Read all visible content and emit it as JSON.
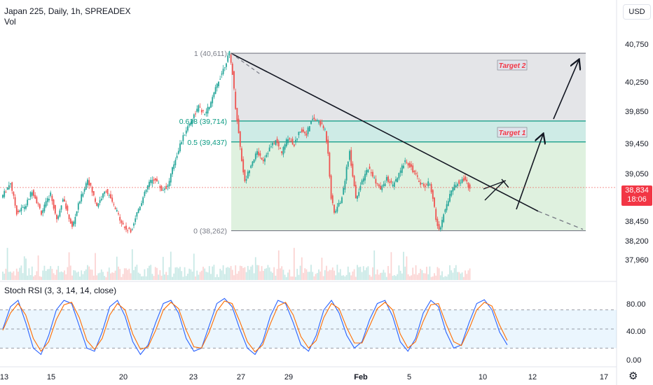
{
  "legend": {
    "symbol_line": "Japan 225, Daily, 1h, SPREADEX",
    "volume_label": "Vol"
  },
  "currency_button": "USD",
  "last_price": {
    "value": "38,834",
    "countdown": "18:06",
    "color": "#f23645"
  },
  "settings_icon": "gear-icon",
  "colors": {
    "up": "#26a69a",
    "down": "#ef5350",
    "rsi_k": "#2962ff",
    "rsi_d": "#ff6d00",
    "fib_line": "#089981",
    "trendline": "#131722"
  },
  "chart_data": [
    {
      "type": "candlestick",
      "title": "Japan 225, Daily, 1h, SPREADEX",
      "x_tick_labels": [
        "13",
        "15",
        "20",
        "23",
        "27",
        "29",
        "Feb",
        "5",
        "10",
        "12",
        "17"
      ],
      "y_tick_labels": [
        "40,750",
        "40,250",
        "39,850",
        "39,450",
        "39,050",
        "38,450",
        "38,200",
        "37,960"
      ],
      "ylim": [
        37800,
        41050
      ],
      "price_path": [
        [
          0,
          38700
        ],
        [
          3,
          38900
        ],
        [
          5,
          38500
        ],
        [
          8,
          38600
        ],
        [
          10,
          38800
        ],
        [
          13,
          38500
        ],
        [
          16,
          38750
        ],
        [
          18,
          38400
        ],
        [
          20,
          38700
        ],
        [
          23,
          38300
        ],
        [
          25,
          38600
        ],
        [
          28,
          38950
        ],
        [
          31,
          38600
        ],
        [
          34,
          38800
        ],
        [
          37,
          38550
        ],
        [
          40,
          38300
        ],
        [
          42,
          38250
        ],
        [
          44,
          38500
        ],
        [
          46,
          38700
        ],
        [
          48,
          38900
        ],
        [
          50,
          38950
        ],
        [
          52,
          38800
        ],
        [
          54,
          38850
        ],
        [
          56,
          39150
        ],
        [
          58,
          39400
        ],
        [
          60,
          39600
        ],
        [
          62,
          39750
        ],
        [
          64,
          39900
        ],
        [
          66,
          39800
        ],
        [
          68,
          39950
        ],
        [
          70,
          40200
        ],
        [
          72,
          40400
        ],
        [
          74,
          40611
        ],
        [
          75,
          40350
        ],
        [
          76,
          39900
        ],
        [
          78,
          39200
        ],
        [
          79,
          38900
        ],
        [
          81,
          39150
        ],
        [
          83,
          39300
        ],
        [
          85,
          39200
        ],
        [
          87,
          39350
        ],
        [
          89,
          39450
        ],
        [
          91,
          39300
        ],
        [
          93,
          39500
        ],
        [
          95,
          39400
        ],
        [
          97,
          39600
        ],
        [
          99,
          39550
        ],
        [
          101,
          39750
        ],
        [
          103,
          39700
        ],
        [
          105,
          39600
        ],
        [
          106,
          39300
        ],
        [
          107,
          38700
        ],
        [
          108,
          38500
        ],
        [
          110,
          38650
        ],
        [
          111,
          38800
        ],
        [
          112,
          39100
        ],
        [
          113,
          39300
        ],
        [
          114,
          39000
        ],
        [
          115,
          38700
        ],
        [
          117,
          38900
        ],
        [
          119,
          39100
        ],
        [
          121,
          38950
        ],
        [
          123,
          38800
        ],
        [
          125,
          38950
        ],
        [
          127,
          38850
        ],
        [
          129,
          39000
        ],
        [
          131,
          39200
        ],
        [
          133,
          39100
        ],
        [
          135,
          38950
        ],
        [
          137,
          38850
        ],
        [
          139,
          38900
        ],
        [
          140,
          38700
        ],
        [
          141,
          38400
        ],
        [
          142,
          38262
        ],
        [
          144,
          38550
        ],
        [
          146,
          38800
        ],
        [
          148,
          38900
        ],
        [
          150,
          38950
        ],
        [
          152,
          38830
        ]
      ],
      "fibonacci": [
        {
          "label": "1 (40,611)",
          "price": 40611
        },
        {
          "label": "0.618 (39,714)",
          "price": 39714
        },
        {
          "label": "0.5 (39,437)",
          "price": 39437
        },
        {
          "label": "0 (38,262)",
          "price": 38262
        }
      ],
      "annotations": [
        "Target 2",
        "Target 1"
      ],
      "last_price": 38834
    },
    {
      "type": "line",
      "title": "Stoch RSI (3, 3, 14, 14, close)",
      "y_tick_labels": [
        "80.00",
        "40.00",
        "0.00"
      ],
      "levels": [
        80,
        50,
        20
      ],
      "ylim": [
        -5,
        105
      ],
      "series": [
        {
          "values": [
            50,
            85,
            95,
            60,
            20,
            10,
            40,
            80,
            95,
            90,
            55,
            20,
            15,
            45,
            85,
            95,
            70,
            30,
            10,
            25,
            60,
            90,
            95,
            75,
            35,
            15,
            20,
            55,
            90,
            98,
            85,
            50,
            20,
            10,
            30,
            70,
            95,
            90,
            60,
            25,
            15,
            40,
            80,
            95,
            75,
            40,
            20,
            30,
            65,
            90,
            95,
            70,
            30,
            15,
            35,
            75,
            95,
            85,
            45,
            20,
            25,
            60,
            90,
            96,
            80,
            45,
            25
          ]
        },
        {
          "values": [
            48,
            75,
            90,
            72,
            35,
            15,
            30,
            65,
            88,
            92,
            68,
            32,
            18,
            35,
            72,
            90,
            80,
            42,
            18,
            22,
            48,
            80,
            92,
            82,
            48,
            22,
            20,
            45,
            78,
            94,
            90,
            62,
            30,
            14,
            25,
            58,
            86,
            92,
            72,
            38,
            20,
            32,
            68,
            90,
            82,
            52,
            28,
            28,
            55,
            82,
            92,
            80,
            42,
            20,
            30,
            62,
            88,
            90,
            58,
            30,
            24,
            50,
            80,
            92,
            86,
            56,
            32
          ]
        }
      ]
    }
  ]
}
